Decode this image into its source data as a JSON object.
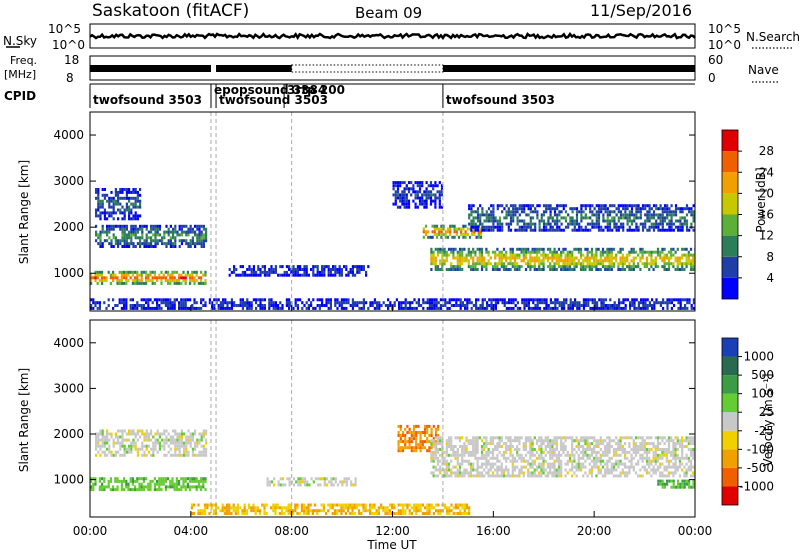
{
  "header": {
    "station": "Saskatoon (fitACF)",
    "beam": "Beam 09",
    "date": "11/Sep/2016"
  },
  "top_panels": {
    "nsky_label": "N.Sky",
    "nsky_ticks": [
      "10^5",
      "10^0"
    ],
    "nsearch_label": "N.Search",
    "nsearch_ticks": [
      "10^5",
      "10^0"
    ],
    "freq_label_1": "Freq.",
    "freq_label_2": "[MHz]",
    "freq_ticks": [
      "18",
      "8"
    ],
    "nave_label": "Nave",
    "nave_ticks": [
      "60",
      "0"
    ],
    "cpid_label": "CPID",
    "cpid_segments": [
      {
        "start_h": 0.0,
        "text": "twofsound 3503"
      },
      {
        "start_h": 4.8,
        "text": "epopsound 3384"
      },
      {
        "start_h": 5.0,
        "text": "twofsound 3503"
      },
      {
        "start_h": 7.7,
        "text": "3rtp 200"
      },
      {
        "start_h": 14.0,
        "text": "twofsound 3503"
      }
    ]
  },
  "chart_data": [
    {
      "type": "heatmap",
      "name": "power",
      "ylabel": "Slant Range [km]",
      "ylim": [
        180,
        4500
      ],
      "yticks": [
        "1000",
        "2000",
        "3000",
        "4000"
      ],
      "xlim_hours": [
        0,
        24
      ],
      "colorbar_label": "Power [dB]",
      "colorbar_ticks": [
        "4",
        "8",
        "12",
        "16",
        "20",
        "24",
        "28"
      ],
      "colorbar_colors": [
        "#0000ff",
        "#1f3fa6",
        "#2e7d5a",
        "#5cb03a",
        "#c8c800",
        "#f0a000",
        "#f06000",
        "#e00000"
      ],
      "bands": [
        {
          "x0": 0.0,
          "x1": 4.6,
          "center_km": 900,
          "width_km": 300,
          "value_db": 26
        },
        {
          "x0": 0.2,
          "x1": 4.6,
          "center_km": 1800,
          "width_km": 500,
          "value_db": 12
        },
        {
          "x0": 0.2,
          "x1": 2.0,
          "center_km": 2500,
          "width_km": 700,
          "value_db": 8
        },
        {
          "x0": 13.5,
          "x1": 24.0,
          "center_km": 1300,
          "width_km": 500,
          "value_db": 22
        },
        {
          "x0": 13.2,
          "x1": 15.5,
          "center_km": 1900,
          "width_km": 300,
          "value_db": 24
        },
        {
          "x0": 15.0,
          "x1": 24.0,
          "center_km": 2200,
          "width_km": 600,
          "value_db": 10
        },
        {
          "x0": 12.0,
          "x1": 14.0,
          "center_km": 2700,
          "width_km": 600,
          "value_db": 6
        },
        {
          "x0": 5.5,
          "x1": 11.0,
          "center_km": 1050,
          "width_km": 250,
          "value_db": 6
        },
        {
          "x0": 0.0,
          "x1": 24.0,
          "center_km": 330,
          "width_km": 250,
          "value_db": 6
        }
      ]
    },
    {
      "type": "heatmap",
      "name": "velocity",
      "ylabel": "Slant Range [km]",
      "ylim": [
        180,
        4500
      ],
      "yticks": [
        "1000",
        "2000",
        "3000",
        "4000"
      ],
      "xlim_hours": [
        0,
        24
      ],
      "xticks": [
        "00:00",
        "04:00",
        "08:00",
        "12:00",
        "16:00",
        "20:00",
        "00:00"
      ],
      "xlabel": "Time UT",
      "colorbar_label": "Velocity [m s⁻¹]",
      "colorbar_ticks": [
        "1000",
        "500",
        "100",
        "25",
        "-25",
        "-100",
        "-500",
        "-1000"
      ],
      "colorbar_colors": [
        "#1b3fb5",
        "#2a6a50",
        "#3c9c45",
        "#66cc33",
        "#c8c8c8",
        "#f0d000",
        "#f0a000",
        "#f06000",
        "#e00000"
      ],
      "bands": [
        {
          "x0": 0.0,
          "x1": 4.6,
          "center_km": 900,
          "width_km": 300,
          "value_ms": 80
        },
        {
          "x0": 0.2,
          "x1": 4.6,
          "center_km": 1800,
          "width_km": 600,
          "value_ms": 0
        },
        {
          "x0": 12.2,
          "x1": 13.8,
          "center_km": 1900,
          "width_km": 600,
          "value_ms": -500
        },
        {
          "x0": 13.5,
          "x1": 24.0,
          "center_km": 1500,
          "width_km": 900,
          "value_ms": 0
        },
        {
          "x0": 22.5,
          "x1": 24.0,
          "center_km": 900,
          "width_km": 200,
          "value_ms": 100
        },
        {
          "x0": 4.0,
          "x1": 15.0,
          "center_km": 350,
          "width_km": 250,
          "value_ms": -100
        },
        {
          "x0": 7.0,
          "x1": 10.5,
          "center_km": 950,
          "width_km": 200,
          "value_ms": 0
        }
      ]
    }
  ]
}
